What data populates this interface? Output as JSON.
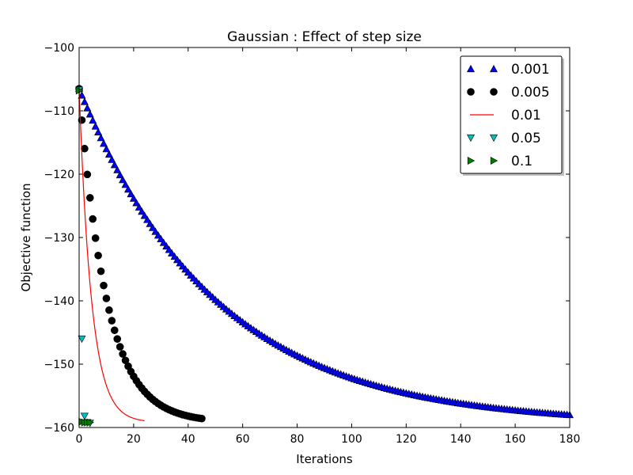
{
  "chart_data": {
    "type": "scatter",
    "title": "Gaussian : Effect of step size",
    "xlabel": "Iterations",
    "ylabel": "Objective function",
    "xlim": [
      0,
      180
    ],
    "ylim": [
      -160,
      -100
    ],
    "xticks": [
      0,
      20,
      40,
      60,
      80,
      100,
      120,
      140,
      160,
      180
    ],
    "xtick_labels": [
      "0",
      "20",
      "40",
      "60",
      "80",
      "100",
      "120",
      "140",
      "160",
      "180"
    ],
    "yticks": [
      -160,
      -150,
      -140,
      -130,
      -120,
      -110,
      -100
    ],
    "ytick_labels": [
      "−160",
      "−150",
      "−140",
      "−130",
      "−120",
      "−110",
      "−100"
    ],
    "grid": false,
    "legend_position": "top-right",
    "series": [
      {
        "name": "0.001",
        "marker": "triangle-up",
        "color": "#0000ff",
        "model": {
          "kind": "exp",
          "y0": -106.5,
          "yinf": -159.5,
          "rate": 0.0198,
          "n": 180,
          "step": 1
        }
      },
      {
        "name": "0.005",
        "marker": "circle",
        "color": "#000000",
        "model": {
          "kind": "exp",
          "y0": -106.5,
          "yinf": -159.2,
          "rate": 0.099,
          "n": 45,
          "step": 1
        }
      },
      {
        "name": "0.01",
        "marker": "line",
        "color": "#ff0000",
        "model": {
          "kind": "exp",
          "y0": -106.5,
          "yinf": -159.2,
          "rate": 0.22,
          "n": 24,
          "step": 0.2
        }
      },
      {
        "name": "0.05",
        "marker": "triangle-down",
        "color": "#00bfbf",
        "points": [
          [
            0,
            -106.7
          ],
          [
            1,
            -146.0
          ],
          [
            2,
            -158.2
          ],
          [
            3,
            -159.2
          ],
          [
            4,
            -159.3
          ]
        ]
      },
      {
        "name": "0.1",
        "marker": "triangle-right",
        "color": "#008000",
        "points": [
          [
            0,
            -106.8
          ],
          [
            1,
            -159.1
          ],
          [
            2,
            -159.2
          ],
          [
            3,
            -159.2
          ],
          [
            4,
            -159.2
          ]
        ]
      }
    ]
  }
}
